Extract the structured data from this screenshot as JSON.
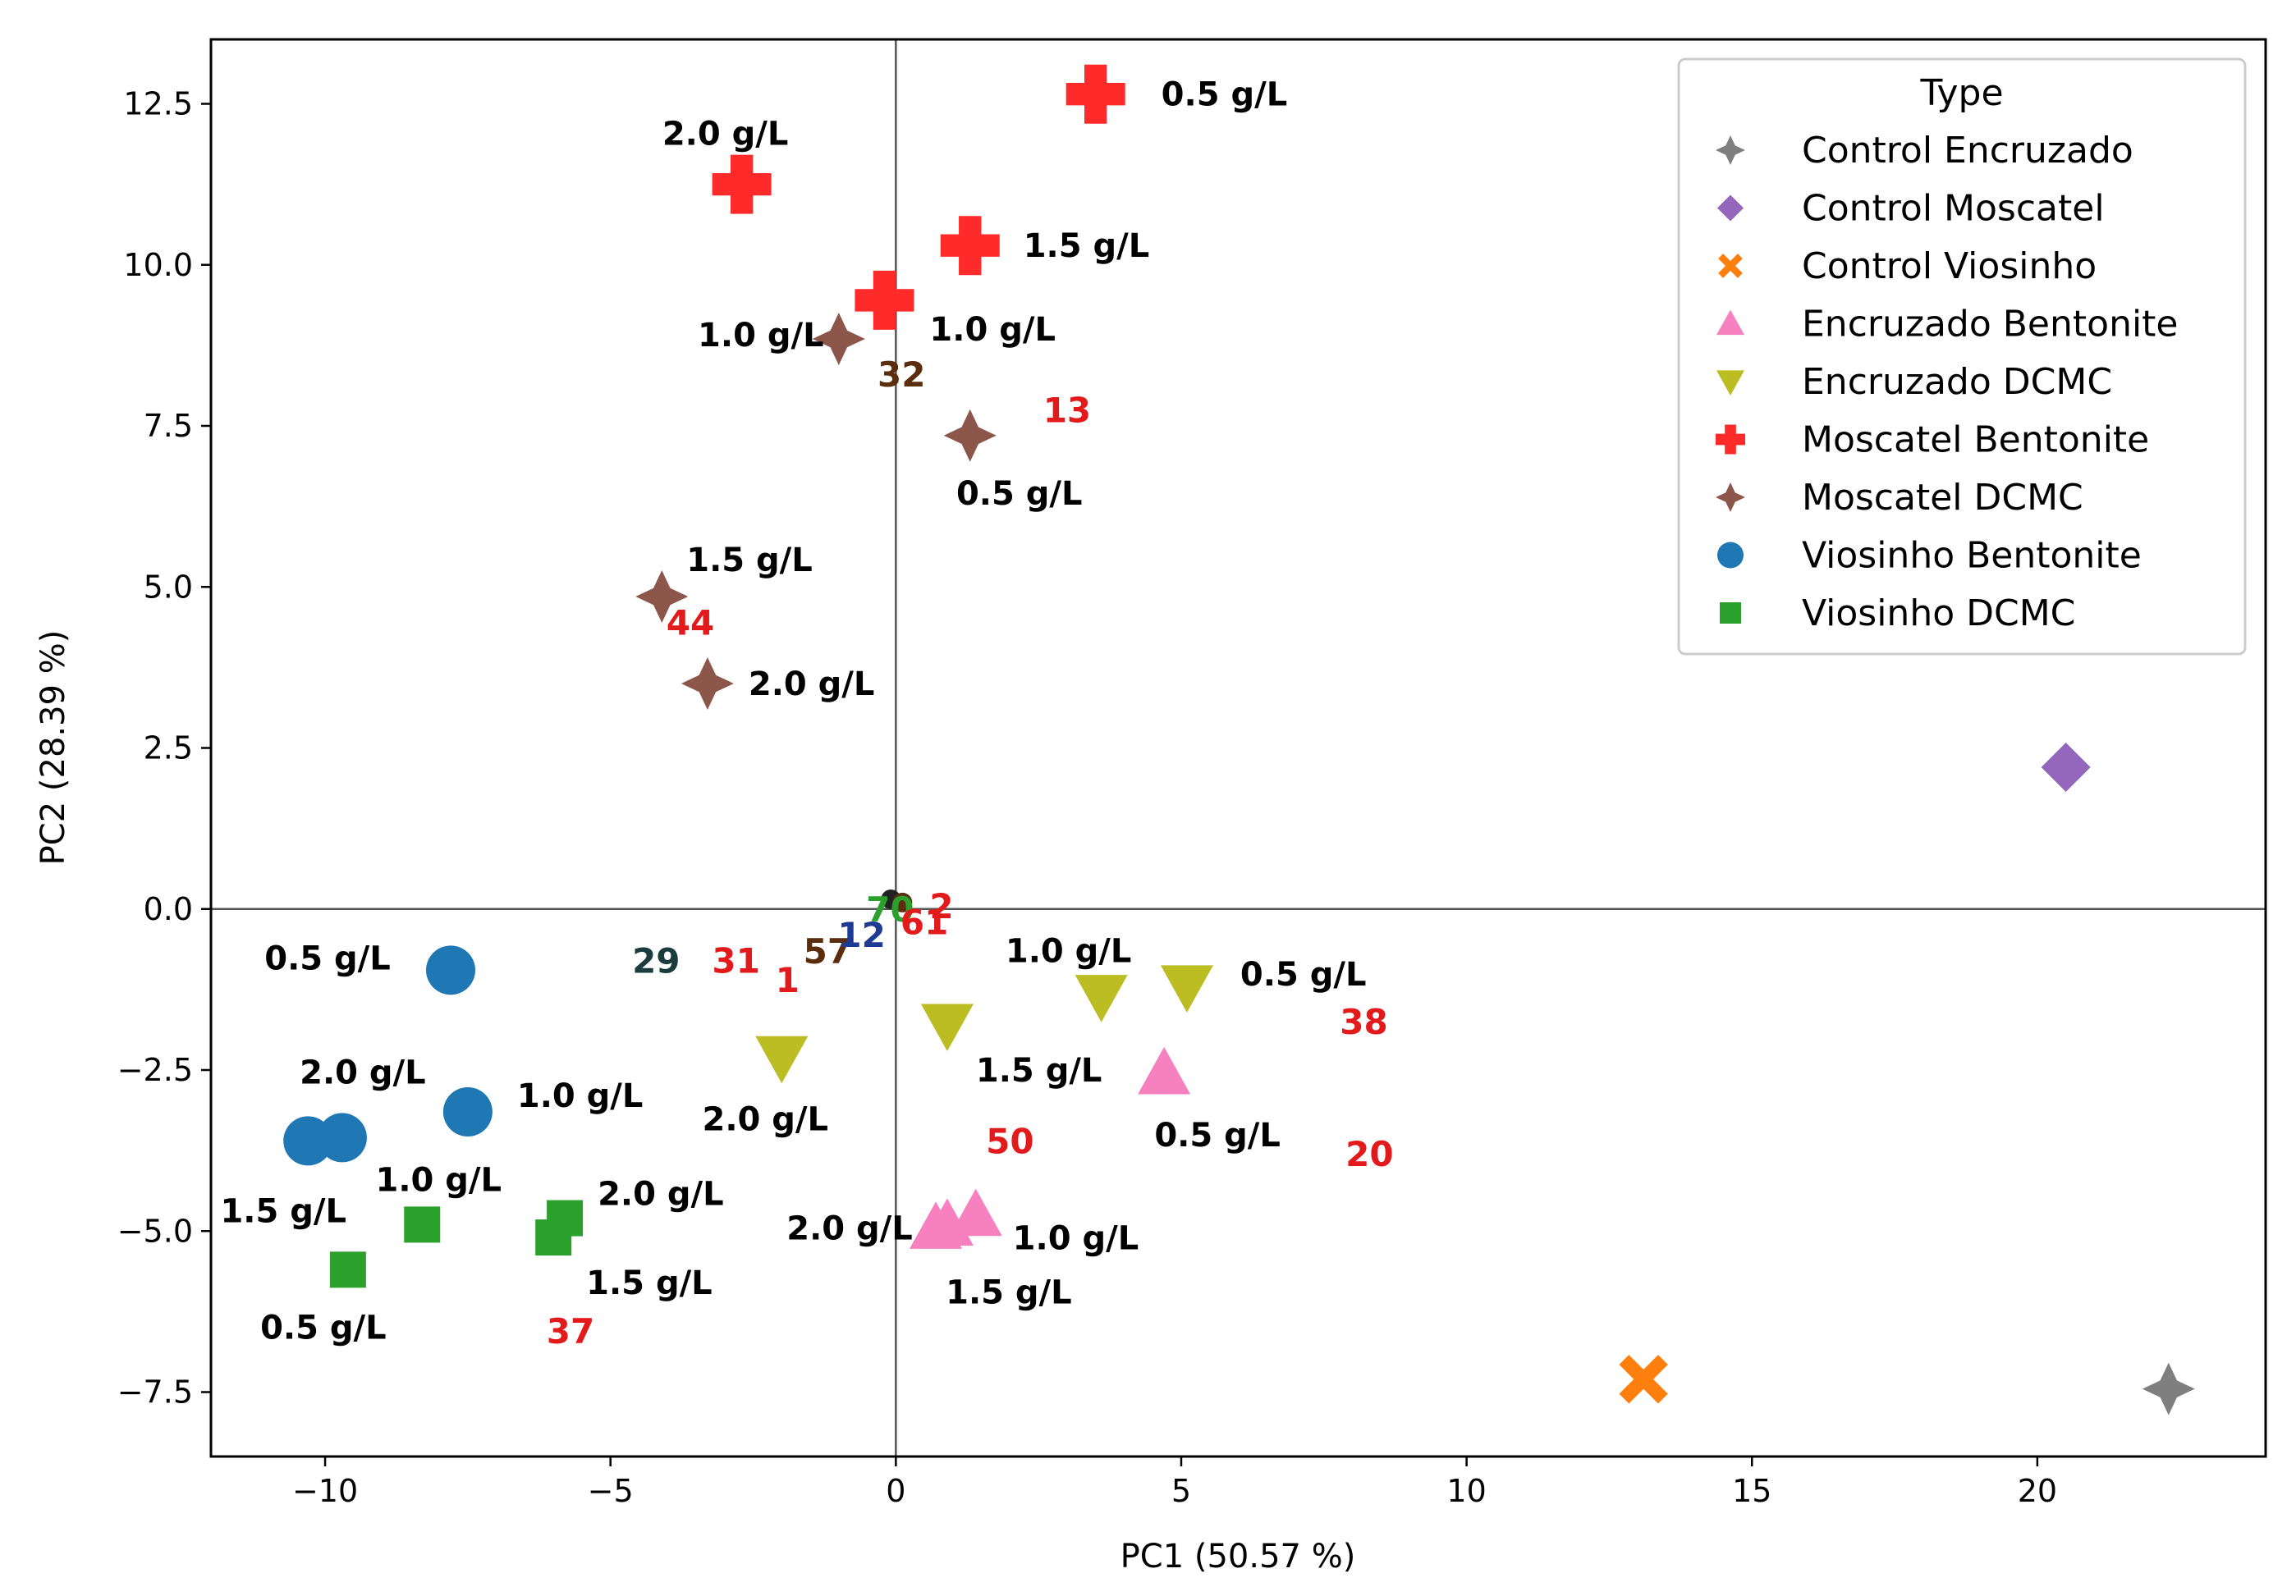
{
  "chart_data": {
    "type": "scatter",
    "title": "",
    "xlabel": "PC1 (50.57 %)",
    "ylabel": "PC2 (28.39 %)",
    "xlim": [
      -12,
      24
    ],
    "ylim": [
      -8.5,
      13.5
    ],
    "xticks": [
      -10,
      -5,
      0,
      5,
      10,
      15,
      20
    ],
    "xtick_labels": [
      "−10",
      "−5",
      "0",
      "5",
      "10",
      "15",
      "20"
    ],
    "yticks": [
      -7.5,
      -5,
      -2.5,
      0,
      2.5,
      5,
      7.5,
      10,
      12.5
    ],
    "ytick_labels": [
      "−7.5",
      "−5.0",
      "−2.5",
      "0.0",
      "2.5",
      "5.0",
      "7.5",
      "10.0",
      "12.5"
    ],
    "grid": false,
    "reference_lines": {
      "x": 0,
      "y": 0
    },
    "legend_title": "Type",
    "legend_position": "top-right",
    "series": [
      {
        "name": "Control Encruzado",
        "color": "#7f7f7f",
        "marker": "star4",
        "points": [
          {
            "x": 22.3,
            "y": -7.45,
            "label": ""
          }
        ]
      },
      {
        "name": "Control Moscatel",
        "color": "#9467bd",
        "marker": "diamond",
        "points": [
          {
            "x": 20.5,
            "y": 2.2,
            "label": ""
          }
        ]
      },
      {
        "name": "Control Viosinho",
        "color": "#ff7f0e",
        "marker": "x",
        "points": [
          {
            "x": 13.1,
            "y": -7.3,
            "label": ""
          }
        ]
      },
      {
        "name": "Encruzado Bentonite",
        "color": "#f781bf",
        "marker": "triangle-up",
        "points": [
          {
            "x": 4.7,
            "y": -2.55,
            "label": "0.5 g/L"
          },
          {
            "x": 1.4,
            "y": -4.75,
            "label": "1.0 g/L"
          },
          {
            "x": 0.9,
            "y": -4.9,
            "label": "1.5 g/L"
          },
          {
            "x": 0.7,
            "y": -4.95,
            "label": "2.0 g/L"
          }
        ]
      },
      {
        "name": "Encruzado DCMC",
        "color": "#bcbd22",
        "marker": "triangle-down",
        "points": [
          {
            "x": 5.1,
            "y": -1.2,
            "label": "0.5 g/L"
          },
          {
            "x": 3.6,
            "y": -1.35,
            "label": "1.0 g/L"
          },
          {
            "x": 0.9,
            "y": -1.8,
            "label": "1.5 g/L"
          },
          {
            "x": -2.0,
            "y": -2.3,
            "label": "2.0 g/L"
          }
        ]
      },
      {
        "name": "Moscatel Bentonite",
        "color": "#ff2a2a",
        "marker": "plus",
        "points": [
          {
            "x": 3.5,
            "y": 12.65,
            "label": "0.5 g/L"
          },
          {
            "x": -0.2,
            "y": 9.45,
            "label": "1.0 g/L"
          },
          {
            "x": 1.3,
            "y": 10.3,
            "label": "1.5 g/L"
          },
          {
            "x": -2.7,
            "y": 11.25,
            "label": "2.0 g/L"
          }
        ]
      },
      {
        "name": "Moscatel DCMC",
        "color": "#8c564b",
        "marker": "star4",
        "points": [
          {
            "x": 1.3,
            "y": 7.35,
            "label": "0.5 g/L"
          },
          {
            "x": -1.0,
            "y": 8.85,
            "label": "1.0 g/L"
          },
          {
            "x": -4.1,
            "y": 4.85,
            "label": "1.5 g/L"
          },
          {
            "x": -3.3,
            "y": 3.5,
            "label": "2.0 g/L"
          }
        ]
      },
      {
        "name": "Viosinho Bentonite",
        "color": "#1f77b4",
        "marker": "circle",
        "points": [
          {
            "x": -7.8,
            "y": -0.95,
            "label": "0.5 g/L"
          },
          {
            "x": -7.5,
            "y": -3.15,
            "label": "1.0 g/L"
          },
          {
            "x": -10.3,
            "y": -3.6,
            "label": "1.5 g/L"
          },
          {
            "x": -9.7,
            "y": -3.55,
            "label": "2.0 g/L"
          }
        ]
      },
      {
        "name": "Viosinho DCMC",
        "color": "#2ca02c",
        "marker": "square",
        "points": [
          {
            "x": -9.6,
            "y": -5.6,
            "label": "0.5 g/L"
          },
          {
            "x": -8.3,
            "y": -4.9,
            "label": "1.0 g/L"
          },
          {
            "x": -6.0,
            "y": -5.1,
            "label": "1.5 g/L"
          },
          {
            "x": -5.8,
            "y": -4.8,
            "label": "2.0 g/L"
          }
        ]
      }
    ],
    "variable_labels": [
      {
        "text": "32",
        "x": 0.1,
        "y": 8.3,
        "color": "#5a2d0c"
      },
      {
        "text": "13",
        "x": 3.0,
        "y": 7.75,
        "color": "#e31a1c"
      },
      {
        "text": "44",
        "x": -3.6,
        "y": 4.45,
        "color": "#e31a1c"
      },
      {
        "text": "29",
        "x": -4.2,
        "y": -0.8,
        "color": "#1a3c3c"
      },
      {
        "text": "31",
        "x": -2.8,
        "y": -0.8,
        "color": "#e31a1c"
      },
      {
        "text": "57",
        "x": -1.2,
        "y": -0.65,
        "color": "#5a2d0c"
      },
      {
        "text": "12",
        "x": -0.6,
        "y": -0.4,
        "color": "#1f3a93"
      },
      {
        "text": "1",
        "x": -1.9,
        "y": -1.1,
        "color": "#e31a1c"
      },
      {
        "text": "70",
        "x": -0.1,
        "y": 0.0,
        "color": "#2ca02c"
      },
      {
        "text": "2",
        "x": 0.8,
        "y": 0.05,
        "color": "#e31a1c"
      },
      {
        "text": "61",
        "x": 0.5,
        "y": -0.2,
        "color": "#e31a1c"
      },
      {
        "text": "38",
        "x": 8.2,
        "y": -1.75,
        "color": "#e31a1c"
      },
      {
        "text": "50",
        "x": 2.0,
        "y": -3.6,
        "color": "#e31a1c"
      },
      {
        "text": "20",
        "x": 8.3,
        "y": -3.8,
        "color": "#e31a1c"
      },
      {
        "text": "37",
        "x": -5.7,
        "y": -6.55,
        "color": "#e31a1c"
      }
    ]
  }
}
